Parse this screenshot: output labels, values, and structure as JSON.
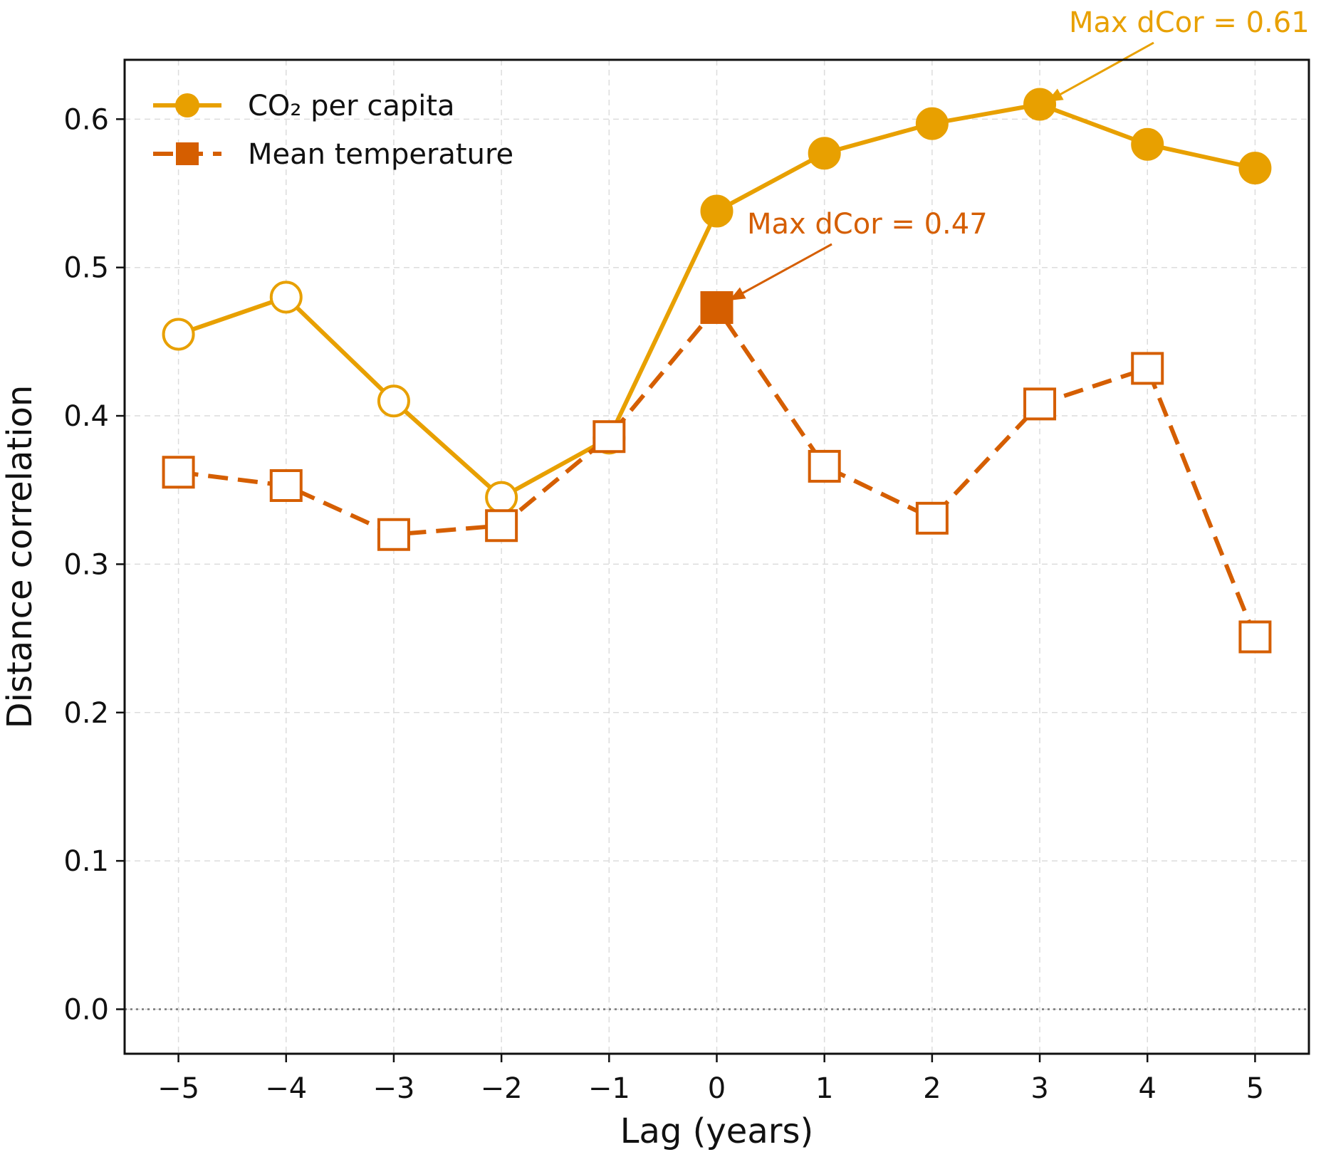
{
  "chart_data": {
    "type": "line",
    "title": "",
    "xlabel": "Lag (years)",
    "ylabel": "Distance correlation",
    "x": [
      -5,
      -4,
      -3,
      -2,
      -1,
      0,
      1,
      2,
      3,
      4,
      5
    ],
    "x_tick_labels": [
      "−5",
      "−4",
      "−3",
      "−2",
      "−1",
      "0",
      "1",
      "2",
      "3",
      "4",
      "5"
    ],
    "y_ticks": [
      0.0,
      0.1,
      0.2,
      0.3,
      0.4,
      0.5,
      0.6
    ],
    "y_tick_labels": [
      "0.0",
      "0.1",
      "0.2",
      "0.3",
      "0.4",
      "0.5",
      "0.6"
    ],
    "xlim": [
      -5.5,
      5.5
    ],
    "ylim": [
      -0.03,
      0.64
    ],
    "grid": true,
    "legend_position": "top-left",
    "series": [
      {
        "name": "CO₂ per capita",
        "color": "#E8A000",
        "marker": "circle",
        "line_style": "solid",
        "values": [
          0.455,
          0.48,
          0.41,
          0.345,
          0.385,
          0.538,
          0.577,
          0.597,
          0.61,
          0.583,
          0.567
        ],
        "filled": [
          false,
          false,
          false,
          false,
          false,
          true,
          true,
          true,
          true,
          true,
          true
        ]
      },
      {
        "name": "Mean temperature",
        "color": "#D55E00",
        "marker": "square",
        "line_style": "dashed",
        "values": [
          0.362,
          0.353,
          0.32,
          0.326,
          0.386,
          0.473,
          0.366,
          0.331,
          0.408,
          0.432,
          0.251
        ],
        "filled": [
          false,
          false,
          false,
          false,
          false,
          true,
          false,
          false,
          false,
          false,
          false
        ]
      }
    ],
    "annotations": [
      {
        "text": "Max dCor = 0.61",
        "series": 0,
        "x": 3,
        "y": 0.61,
        "color": "#E8A000"
      },
      {
        "text": "Max dCor = 0.47",
        "series": 1,
        "x": 0,
        "y": 0.473,
        "color": "#D55E00"
      }
    ],
    "reference_line": {
      "y": 0.0,
      "style": "dotted"
    }
  }
}
